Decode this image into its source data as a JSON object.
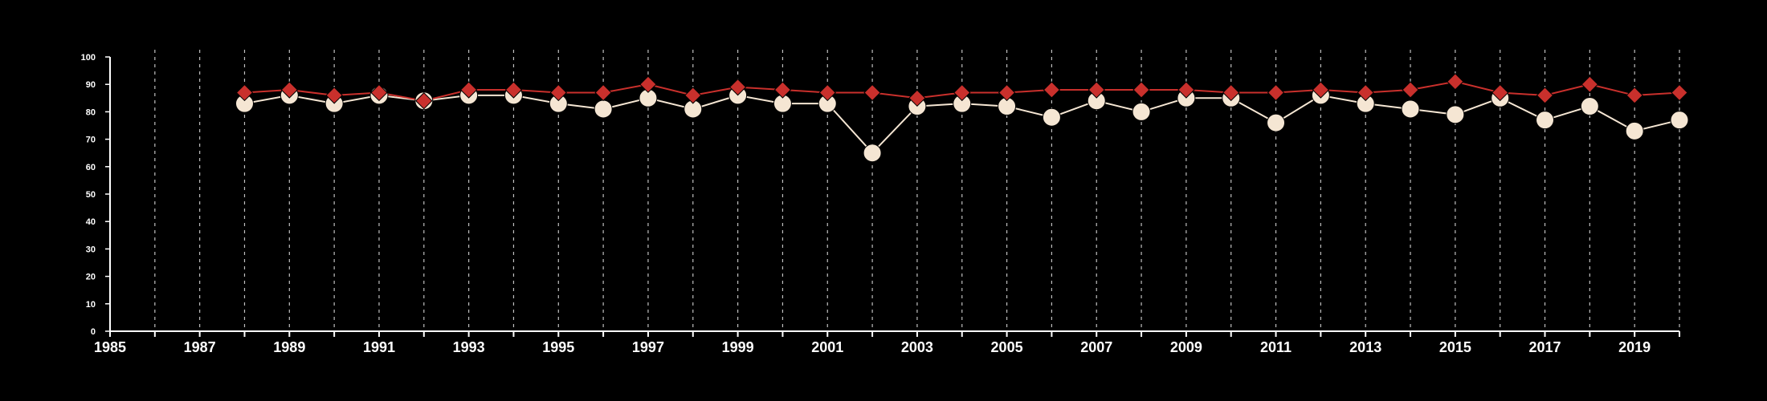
{
  "chart_data": {
    "type": "line",
    "title": "",
    "xlabel": "",
    "ylabel": "",
    "xlim": [
      1985,
      2020
    ],
    "ylim": [
      0,
      100
    ],
    "x_ticks": [
      1985,
      1987,
      1989,
      1991,
      1993,
      1995,
      1997,
      1999,
      2001,
      2003,
      2005,
      2007,
      2009,
      2011,
      2013,
      2015,
      2017,
      2019
    ],
    "y_ticks": [
      0,
      10,
      20,
      30,
      40,
      50,
      60,
      70,
      80,
      90,
      100
    ],
    "vertical_gridlines": "dashed",
    "legend": "none",
    "x": [
      1988,
      1989,
      1990,
      1991,
      1992,
      1993,
      1994,
      1995,
      1996,
      1997,
      1998,
      1999,
      2000,
      2001,
      2002,
      2003,
      2004,
      2005,
      2006,
      2007,
      2008,
      2009,
      2010,
      2011,
      2012,
      2013,
      2014,
      2015,
      2016,
      2017,
      2018,
      2019,
      2020
    ],
    "series": [
      {
        "color": "#f5e6d3",
        "marker": "circle",
        "values": [
          83,
          86,
          83,
          86,
          84,
          86,
          86,
          83,
          81,
          85,
          81,
          86,
          83,
          83,
          65,
          82,
          83,
          82,
          78,
          84,
          80,
          85,
          85,
          76,
          86,
          83,
          81,
          79,
          85,
          77,
          82,
          73,
          77
        ]
      },
      {
        "color": "#c9302c",
        "marker": "diamond",
        "values": [
          87,
          88,
          86,
          87,
          84,
          88,
          88,
          87,
          87,
          90,
          86,
          89,
          88,
          87,
          87,
          85,
          87,
          87,
          88,
          88,
          88,
          88,
          87,
          87,
          88,
          87,
          88,
          91,
          87,
          86,
          90,
          86,
          87
        ]
      }
    ]
  },
  "colors": {
    "background": "#000000",
    "axis": "#ffffff",
    "grid": "#bfbfbf"
  }
}
